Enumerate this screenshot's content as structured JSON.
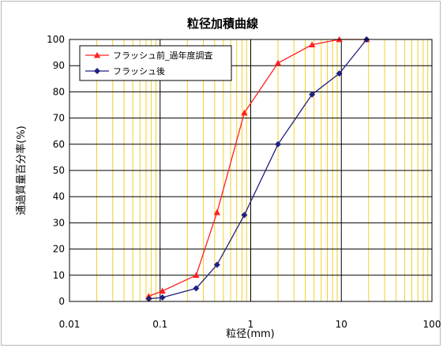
{
  "chart_data": {
    "type": "line",
    "title": "粒径加積曲線",
    "xlabel": "粒径(mm)",
    "ylabel": "通過質量百分率(%)",
    "x_scale": "log",
    "xlim": [
      0.01,
      100
    ],
    "ylim": [
      0,
      100
    ],
    "x_ticks": [
      "0.01",
      "0.1",
      "1",
      "10",
      "100"
    ],
    "y_ticks": [
      "0",
      "10",
      "20",
      "30",
      "40",
      "50",
      "60",
      "70",
      "80",
      "90",
      "100"
    ],
    "grid": true,
    "legend_position": "top-left",
    "series": [
      {
        "name": "フラッシュ前_過年度調査",
        "color": "#ff2020",
        "marker": "triangle",
        "x": [
          0.075,
          0.106,
          0.25,
          0.425,
          0.85,
          2,
          4.75,
          9.5,
          19
        ],
        "y": [
          2,
          4,
          10,
          34,
          72,
          91,
          98,
          100,
          100
        ]
      },
      {
        "name": "フラッシュ後",
        "color": "#202080",
        "marker": "diamond",
        "x": [
          0.075,
          0.106,
          0.25,
          0.425,
          0.85,
          2,
          4.75,
          9.5,
          19
        ],
        "y": [
          1,
          1.5,
          5,
          14,
          33,
          60,
          79,
          87,
          100
        ]
      }
    ]
  }
}
